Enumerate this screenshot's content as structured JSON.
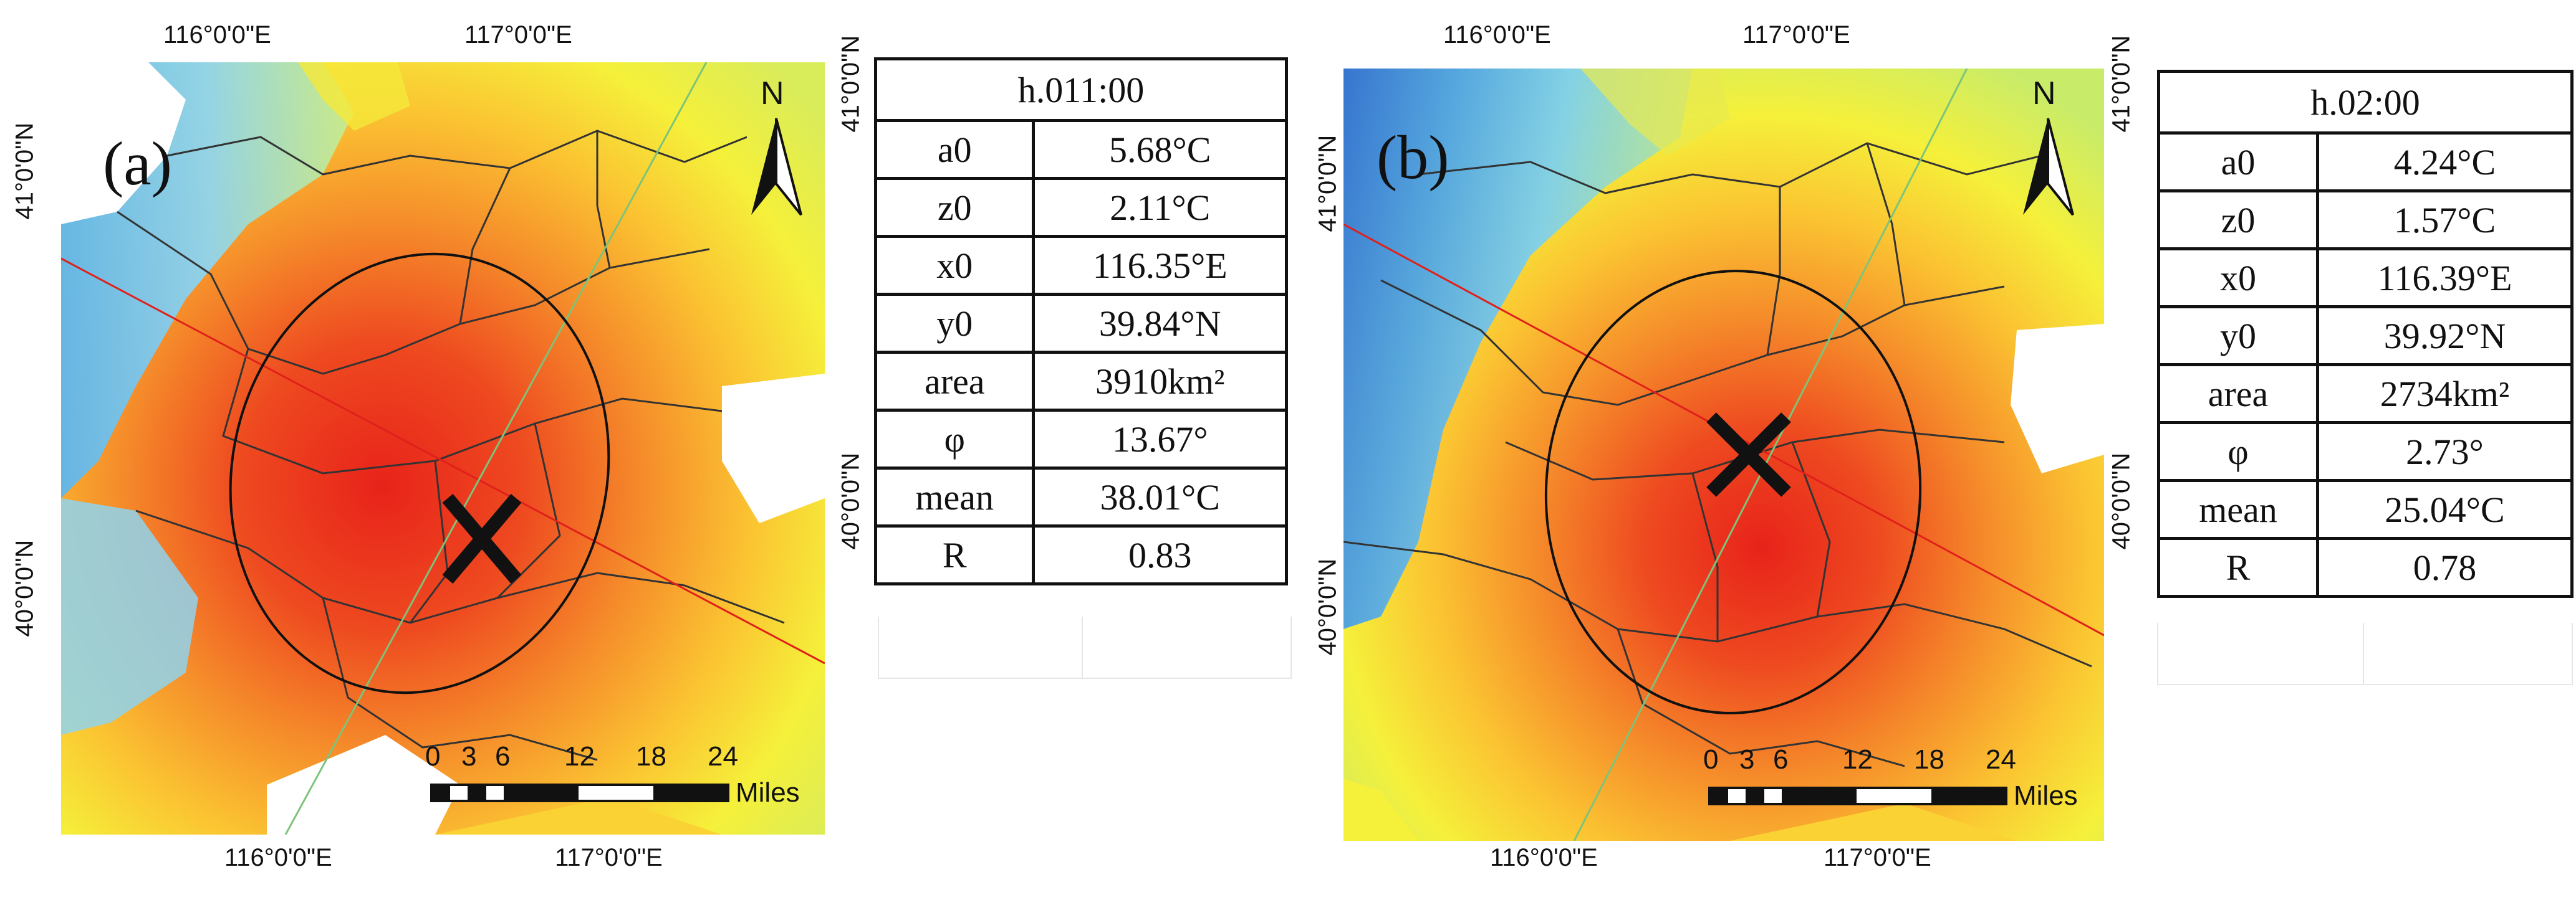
{
  "panels": [
    {
      "id": "a",
      "label": "(a)",
      "top_lon_labels": [
        "116°0'0\"E",
        "117°0'0\"E"
      ],
      "bottom_lon_labels": [
        "116°0'0\"E",
        "117°0'0\"E"
      ],
      "left_lat_labels": [
        "41°0'0\"N",
        "40°0'0\"N"
      ],
      "right_lat_labels": [
        "41°0'0\"N",
        "40°0'0\"N"
      ],
      "north_label": "N",
      "scale_ticks": [
        "0",
        "3",
        "6",
        "12",
        "18",
        "24"
      ],
      "scale_unit": "Miles",
      "table": {
        "header": "h.011:00",
        "rows": [
          {
            "k": "a0",
            "v": "5.68°C"
          },
          {
            "k": "z0",
            "v": "2.11°C"
          },
          {
            "k": "x0",
            "v": "116.35°E"
          },
          {
            "k": "y0",
            "v": "39.84°N"
          },
          {
            "k": "area",
            "v": "3910km²"
          },
          {
            "k": "φ",
            "v": "13.67°"
          },
          {
            "k": "mean",
            "v": "38.01°C"
          },
          {
            "k": "R",
            "v": "0.83"
          }
        ]
      }
    },
    {
      "id": "b",
      "label": "(b)",
      "top_lon_labels": [
        "116°0'0\"E",
        "117°0'0\"E"
      ],
      "bottom_lon_labels": [
        "116°0'0\"E",
        "117°0'0\"E"
      ],
      "left_lat_labels": [
        "41°0'0\"N",
        "40°0'0\"N"
      ],
      "right_lat_labels": [
        "41°0'0\"N",
        "40°0'0\"N"
      ],
      "north_label": "N",
      "scale_ticks": [
        "0",
        "3",
        "6",
        "12",
        "18",
        "24"
      ],
      "scale_unit": "Miles",
      "table": {
        "header": "h.02:00",
        "rows": [
          {
            "k": "a0",
            "v": "4.24°C"
          },
          {
            "k": "z0",
            "v": "1.57°C"
          },
          {
            "k": "x0",
            "v": "116.39°E"
          },
          {
            "k": "y0",
            "v": "39.92°N"
          },
          {
            "k": "area",
            "v": "2734km²"
          },
          {
            "k": "φ",
            "v": "2.73°"
          },
          {
            "k": "mean",
            "v": "25.04°C"
          },
          {
            "k": "R",
            "v": "0.78"
          }
        ]
      }
    }
  ],
  "colors": {
    "hot": "#e8231a",
    "warm": "#f58a2a",
    "mild": "#fbd233",
    "yellow": "#f5f03a",
    "cool": "#7fd0ec",
    "cold": "#3a7fd8",
    "red_line": "#e0201a",
    "green_line": "#7cc47a"
  }
}
